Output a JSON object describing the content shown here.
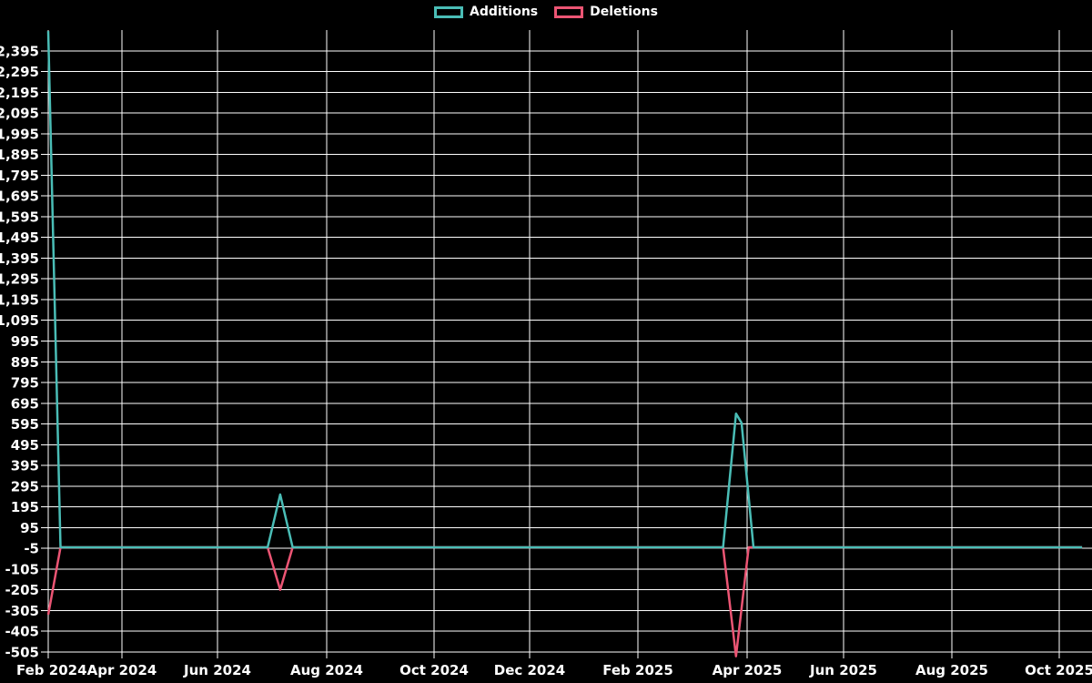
{
  "page": {
    "background": "#000000",
    "text_color": "#ffffff",
    "grid_color": "#ffffff"
  },
  "legend": {
    "items": [
      {
        "label": "Additions",
        "color": "#4abdb6"
      },
      {
        "label": "Deletions",
        "color": "#ec5574"
      }
    ]
  },
  "chart_data": {
    "type": "line",
    "title": "",
    "xlabel": "",
    "ylabel": "",
    "legend_position": "top",
    "grid": true,
    "y_axis": {
      "min": -505,
      "max": 2495,
      "tick_step": 100
    },
    "y_tick_labels": [
      "2,395",
      "2,295",
      "2,195",
      "2,095",
      "1,995",
      "1,895",
      "1,795",
      "1,695",
      "1,595",
      "1,495",
      "1,395",
      "1,295",
      "1,195",
      "1,095",
      "995",
      "895",
      "795",
      "695",
      "595",
      "495",
      "395",
      "295",
      "195",
      "95",
      "-5",
      "-105",
      "-205",
      "-305",
      "-405",
      "-505"
    ],
    "x_tick_labels": [
      "Feb 2024",
      "Apr 2024",
      "Jun 2024",
      "Aug 2024",
      "Oct 2024",
      "Dec 2024",
      "Feb 2025",
      "Apr 2025",
      "Jun 2025",
      "Aug 2025",
      "Oct 2025"
    ],
    "series": [
      {
        "name": "Additions",
        "color": "#4abdb6",
        "points": [
          {
            "date": "2024-02-01",
            "value": 2490
          },
          {
            "date": "2024-02-11",
            "value": 0
          },
          {
            "date": "2024-06-29",
            "value": 0
          },
          {
            "date": "2024-07-06",
            "value": 255
          },
          {
            "date": "2024-07-13",
            "value": 0
          },
          {
            "date": "2025-03-19",
            "value": 0
          },
          {
            "date": "2025-03-26",
            "value": 645
          },
          {
            "date": "2025-03-29",
            "value": 600
          },
          {
            "date": "2025-04-05",
            "value": 0
          },
          {
            "date": "2025-10-14",
            "value": 0
          }
        ]
      },
      {
        "name": "Deletions",
        "color": "#ec5574",
        "points": [
          {
            "date": "2024-02-01",
            "value": -325
          },
          {
            "date": "2024-02-11",
            "value": 0
          },
          {
            "date": "2024-06-29",
            "value": 0
          },
          {
            "date": "2024-07-06",
            "value": -205
          },
          {
            "date": "2024-07-13",
            "value": 0
          },
          {
            "date": "2025-03-19",
            "value": 0
          },
          {
            "date": "2025-03-26",
            "value": -525
          },
          {
            "date": "2025-04-02",
            "value": 0
          },
          {
            "date": "2025-10-14",
            "value": 0
          }
        ]
      }
    ]
  }
}
